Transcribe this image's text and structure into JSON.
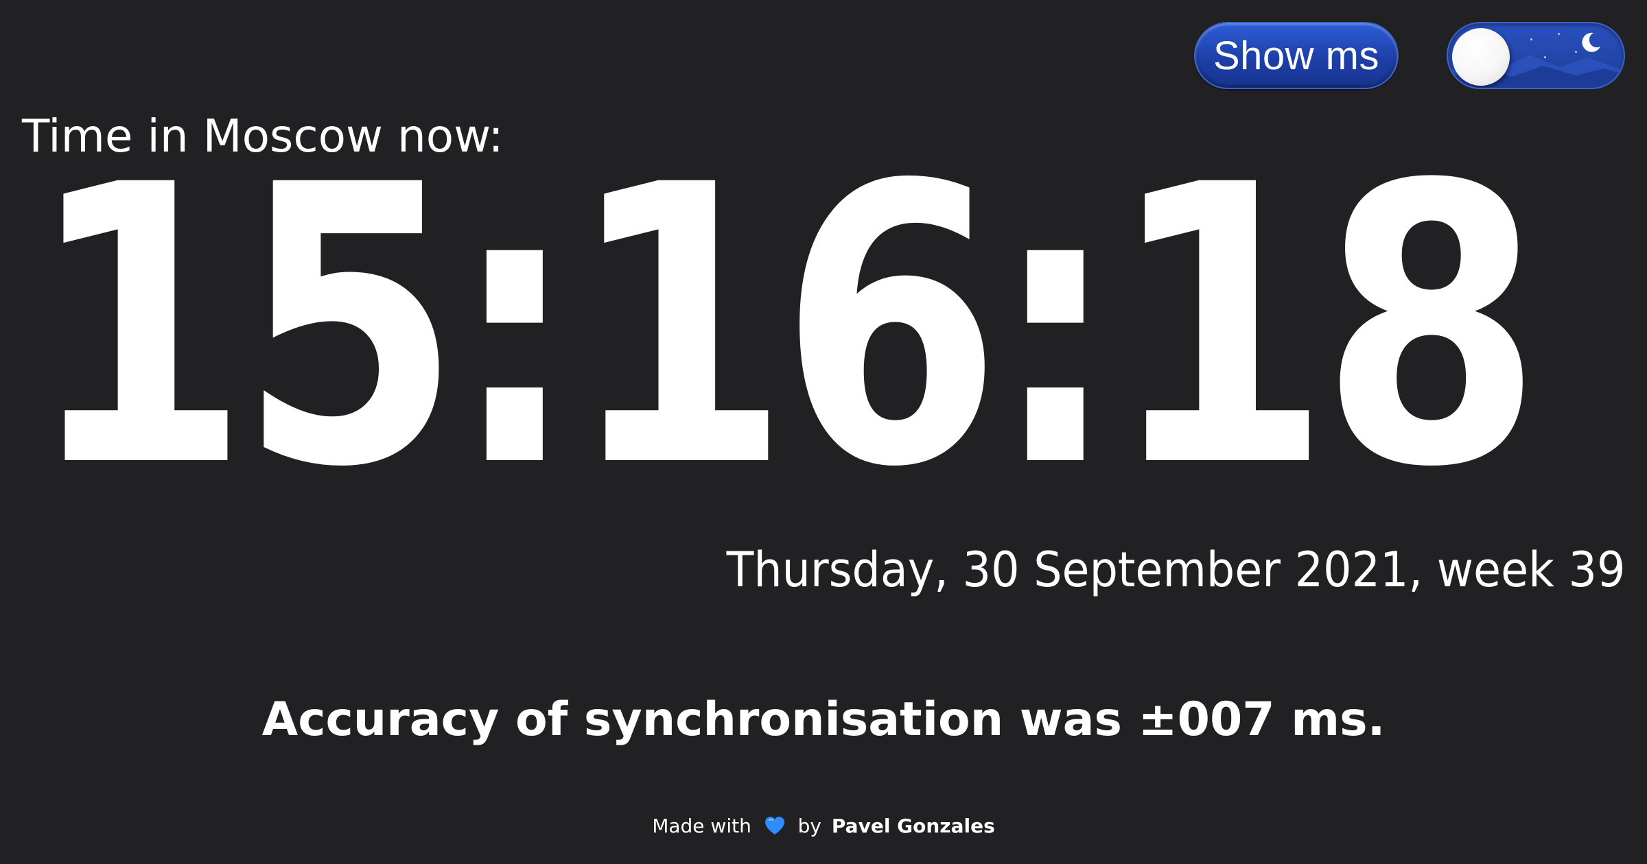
{
  "controls": {
    "show_ms_label": "Show ms",
    "theme_toggle": {
      "state": "dark",
      "icon": "moon-icon"
    }
  },
  "heading": "Time in Moscow now:",
  "clock": {
    "time": "15:16:18"
  },
  "date": "Thursday, 30 September 2021, week 39",
  "accuracy": "Accuracy of synchronisation was ±007 ms.",
  "footer": {
    "made_with": "Made with",
    "heart_icon": "blue-heart-icon",
    "by": "by",
    "author": "Pavel Gonzales"
  },
  "colors": {
    "background": "#212123",
    "text": "#ffffff",
    "accent": "#2346aa",
    "heart": "#2f8cff"
  }
}
